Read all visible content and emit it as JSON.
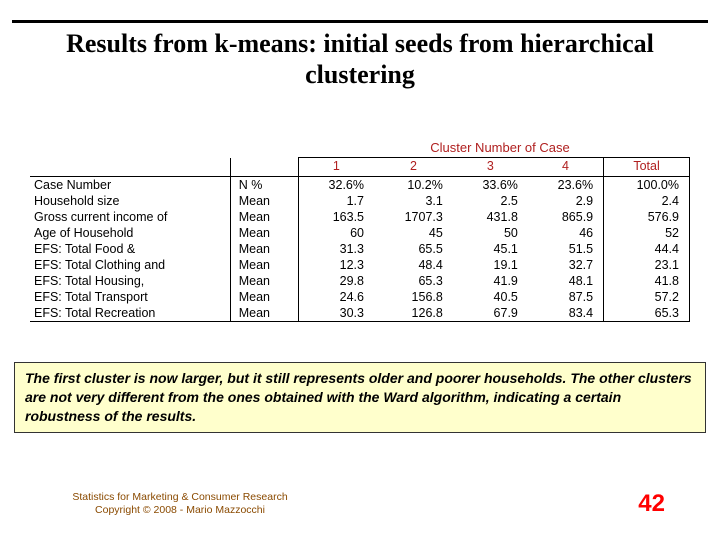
{
  "title": "Results from k-means: initial seeds from hierarchical clustering",
  "table": {
    "super_header": "Cluster Number of Case",
    "col_headers": [
      "1",
      "2",
      "3",
      "4",
      "Total"
    ],
    "rows": [
      {
        "label": "Case Number",
        "stat": "N %",
        "v": [
          "32.6%",
          "10.2%",
          "33.6%",
          "23.6%",
          "100.0%"
        ]
      },
      {
        "label": "Household size",
        "stat": "Mean",
        "v": [
          "1.7",
          "3.1",
          "2.5",
          "2.9",
          "2.4"
        ]
      },
      {
        "label": "Gross current income of",
        "stat": "Mean",
        "v": [
          "163.5",
          "1707.3",
          "431.8",
          "865.9",
          "576.9"
        ]
      },
      {
        "label": "Age of Household",
        "stat": "Mean",
        "v": [
          "60",
          "45",
          "50",
          "46",
          "52"
        ]
      },
      {
        "label": "EFS: Total Food &",
        "stat": "Mean",
        "v": [
          "31.3",
          "65.5",
          "45.1",
          "51.5",
          "44.4"
        ]
      },
      {
        "label": "EFS: Total Clothing and",
        "stat": "Mean",
        "v": [
          "12.3",
          "48.4",
          "19.1",
          "32.7",
          "23.1"
        ]
      },
      {
        "label": "EFS: Total Housing,",
        "stat": "Mean",
        "v": [
          "29.8",
          "65.3",
          "41.9",
          "48.1",
          "41.8"
        ]
      },
      {
        "label": "EFS: Total Transport",
        "stat": "Mean",
        "v": [
          "24.6",
          "156.8",
          "40.5",
          "87.5",
          "57.2"
        ]
      },
      {
        "label": "EFS: Total Recreation",
        "stat": "Mean",
        "v": [
          "30.3",
          "126.8",
          "67.9",
          "83.4",
          "65.3"
        ]
      }
    ]
  },
  "note": "The first cluster is now larger, but it still represents older and poorer households. The other clusters are not very different from the ones obtained with the Ward algorithm, indicating a certain robustness of the results.",
  "footer_line1": "Statistics for Marketing & Consumer Research",
  "footer_line2": "Copyright © 2008 - Mario Mazzocchi",
  "page_number": "42"
}
